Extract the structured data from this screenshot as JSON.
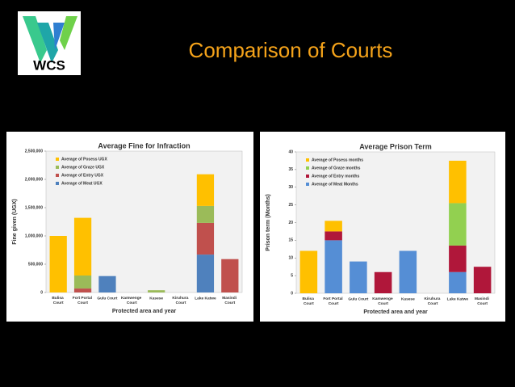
{
  "slide": {
    "title": "Comparison of Courts",
    "logo_text": "WCS"
  },
  "chart_data": [
    {
      "type": "stacked_bar",
      "title": "Average Fine for Infraction",
      "x_label": "Protected area and year",
      "y_label": "Fine given (UGX)",
      "categories": [
        "Bulisa Court",
        "Fort Portal Court",
        "Gulu Court",
        "Kamwenge Court",
        "Kasese",
        "Kiruhura Court",
        "Lake Katwe",
        "Masindi Court"
      ],
      "series": [
        {
          "name": "Average of Meat UGX",
          "color": "#4f81bd",
          "values": [
            null,
            null,
            290000,
            null,
            null,
            null,
            670000,
            null
          ]
        },
        {
          "name": "Average of Entry UGX",
          "color": "#c0504d",
          "values": [
            null,
            70000,
            null,
            null,
            null,
            null,
            560000,
            590000
          ]
        },
        {
          "name": "Average of Graze UGX",
          "color": "#9bbb59",
          "values": [
            null,
            230000,
            null,
            null,
            40000,
            null,
            300000,
            null
          ]
        },
        {
          "name": "Average of Posess UGX",
          "color": "#ffc000",
          "values": [
            1000000,
            1020000,
            null,
            null,
            null,
            null,
            560000,
            null
          ]
        }
      ],
      "ylim": [
        0,
        2500000
      ],
      "yticks": [
        0,
        {
          "value": 500000,
          "label": "500,000"
        },
        {
          "value": 1000000,
          "label": "1,000,000"
        },
        {
          "value": 1500000,
          "label": "1,500,000"
        },
        {
          "value": 2000000,
          "label": "2,000,000"
        },
        {
          "value": 2500000,
          "label": "2,500,000"
        }
      ],
      "legend": "top-left",
      "grid": false
    },
    {
      "type": "stacked_bar",
      "title": "Average Prison Term",
      "x_label": "Protected area and year",
      "y_label": "Prison term (Months)",
      "categories": [
        "Bulisa Court",
        "Fort Portal Court",
        "Gulu Court",
        "Kamwenge Court",
        "Kasese",
        "Kiruhura Court",
        "Lake Katwe",
        "Masindi Court"
      ],
      "series": [
        {
          "name": "Average of Meat Months",
          "color": "#558ed5",
          "values": [
            null,
            15,
            9,
            null,
            12,
            null,
            6,
            null
          ]
        },
        {
          "name": "Average of Entry months",
          "color": "#b0173a",
          "values": [
            null,
            2.5,
            null,
            6,
            null,
            null,
            7.5,
            7.5
          ]
        },
        {
          "name": "Average of Graze months",
          "color": "#92d050",
          "values": [
            null,
            null,
            null,
            null,
            null,
            null,
            12,
            null
          ]
        },
        {
          "name": "Average of Posess months",
          "color": "#ffc000",
          "values": [
            12,
            3,
            null,
            null,
            null,
            null,
            12,
            null
          ]
        }
      ],
      "ylim": [
        0,
        40
      ],
      "yticks": [
        0,
        5,
        10,
        15,
        20,
        25,
        30,
        35,
        40
      ],
      "legend": "top-left",
      "grid": false
    }
  ]
}
